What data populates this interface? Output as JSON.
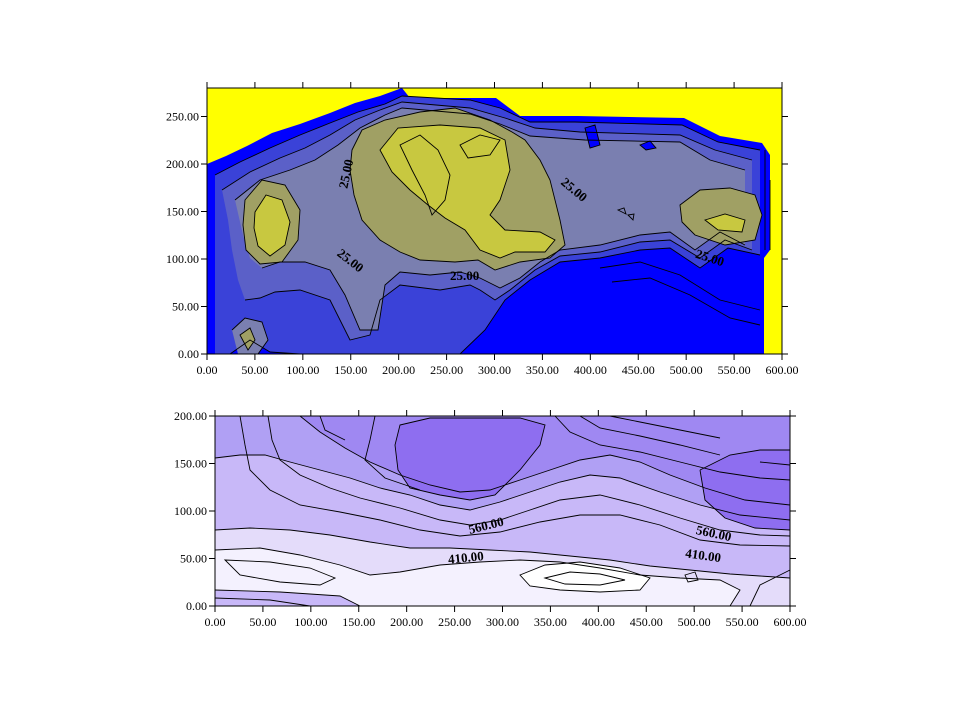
{
  "chart_data": [
    {
      "type": "contour",
      "x_ticks": [
        "0.00",
        "50.00",
        "100.00",
        "150.00",
        "200.00",
        "250.00",
        "300.00",
        "350.00",
        "400.00",
        "450.00",
        "500.00",
        "550.00",
        "600.00"
      ],
      "y_ticks": [
        "0.00",
        "50.00",
        "100.00",
        "150.00",
        "200.00",
        "250.00"
      ],
      "xlim": [
        0,
        600
      ],
      "ylim": [
        0,
        280
      ],
      "contour_labels": [
        "25.00",
        "25.00",
        "25.00",
        "25.00",
        "25.00"
      ],
      "colors": {
        "background": "#ffff00",
        "low": "#0000ff",
        "mid_low": "#3a42d8",
        "mid": "#7a7fb0",
        "mid_high": "#a8a860",
        "high": "#c8c840"
      }
    },
    {
      "type": "contour",
      "x_ticks": [
        "0.00",
        "50.00",
        "100.00",
        "150.00",
        "200.00",
        "250.00",
        "300.00",
        "350.00",
        "400.00",
        "450.00",
        "500.00",
        "550.00",
        "600.00"
      ],
      "y_ticks": [
        "0.00",
        "50.00",
        "100.00",
        "150.00",
        "200.00"
      ],
      "xlim": [
        0,
        600
      ],
      "ylim": [
        0,
        200
      ],
      "contour_labels": [
        "560.00",
        "560.00",
        "410.00",
        "410.00"
      ],
      "colors": {
        "low": "#f6f4ff",
        "mid": "#c8b8f8",
        "high": "#9070f0"
      }
    }
  ]
}
